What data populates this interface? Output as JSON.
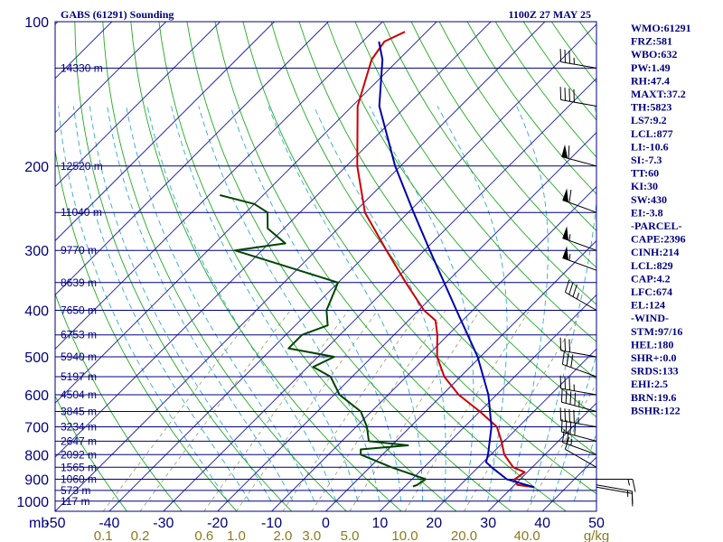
{
  "chart_data": {
    "type": "line",
    "title": "GABS (61291) Sounding",
    "timestamp": "1100Z 27 MAY 25",
    "pressure_axis": {
      "unit_label": "mb",
      "range": [
        1050,
        100
      ],
      "ticks": [
        "100",
        "200",
        "300",
        "400",
        "500",
        "600",
        "700",
        "800",
        "900",
        "1000"
      ]
    },
    "temperature_axis": {
      "range": [
        -50,
        50
      ],
      "ticks": [
        "-50",
        "-40",
        "-30",
        "-20",
        "-10",
        "0",
        "10",
        "20",
        "30",
        "40",
        "50"
      ]
    },
    "mixing_ratio_axis": {
      "unit_label": "g/kg",
      "ticks": [
        "0.1",
        "0.2",
        "0.6",
        "1.0",
        "2.0",
        "3.0",
        "5.0",
        "10.0",
        "20.0",
        "40.0"
      ]
    },
    "height_levels": [
      {
        "p": 125,
        "label": "14330 m"
      },
      {
        "p": 200,
        "label": "12520 m"
      },
      {
        "p": 250,
        "label": "11040 m"
      },
      {
        "p": 300,
        "label": "9770 m"
      },
      {
        "p": 350,
        "label": "8639 m"
      },
      {
        "p": 400,
        "label": "7650 m"
      },
      {
        "p": 450,
        "label": "6753 m"
      },
      {
        "p": 500,
        "label": "5940 m"
      },
      {
        "p": 550,
        "label": "5197 m"
      },
      {
        "p": 600,
        "label": "4504 m"
      },
      {
        "p": 650,
        "label": "3845 m"
      },
      {
        "p": 700,
        "label": "3234 m"
      },
      {
        "p": 750,
        "label": "2647 m"
      },
      {
        "p": 800,
        "label": "2092 m"
      },
      {
        "p": 850,
        "label": "1565 m"
      },
      {
        "p": 900,
        "label": "1060 m"
      },
      {
        "p": 950,
        "label": "573 m"
      },
      {
        "p": 1000,
        "label": "117 m"
      }
    ],
    "series": [
      {
        "name": "Temperature",
        "color": "#cc0000",
        "points": [
          {
            "p": 935,
            "t": 34.0
          },
          {
            "p": 925,
            "t": 30.5
          },
          {
            "p": 900,
            "t": 29.0
          },
          {
            "p": 870,
            "t": 29.5
          },
          {
            "p": 850,
            "t": 26.5
          },
          {
            "p": 800,
            "t": 22.5
          },
          {
            "p": 750,
            "t": 19.5
          },
          {
            "p": 700,
            "t": 16.0
          },
          {
            "p": 650,
            "t": 10.0
          },
          {
            "p": 600,
            "t": 3.0
          },
          {
            "p": 550,
            "t": -3.0
          },
          {
            "p": 500,
            "t": -8.0
          },
          {
            "p": 450,
            "t": -12.0
          },
          {
            "p": 420,
            "t": -15.0
          },
          {
            "p": 400,
            "t": -19.0
          },
          {
            "p": 350,
            "t": -27.5
          },
          {
            "p": 300,
            "t": -37.0
          },
          {
            "p": 250,
            "t": -48.0
          },
          {
            "p": 200,
            "t": -58.0
          },
          {
            "p": 150,
            "t": -69.0
          },
          {
            "p": 120,
            "t": -75.0
          },
          {
            "p": 110,
            "t": -76.0
          },
          {
            "p": 105,
            "t": -74.0
          }
        ]
      },
      {
        "name": "Dew point",
        "color": "#004400",
        "points": [
          {
            "p": 932,
            "t": 11.5
          },
          {
            "p": 925,
            "t": 12.0
          },
          {
            "p": 900,
            "t": 12.5
          },
          {
            "p": 870,
            "t": 7.5
          },
          {
            "p": 850,
            "t": 4.0
          },
          {
            "p": 800,
            "t": -4.0
          },
          {
            "p": 780,
            "t": -5.0
          },
          {
            "p": 765,
            "t": 3.0
          },
          {
            "p": 750,
            "t": -5.0
          },
          {
            "p": 700,
            "t": -8.0
          },
          {
            "p": 650,
            "t": -12.0
          },
          {
            "p": 600,
            "t": -19.0
          },
          {
            "p": 550,
            "t": -24.0
          },
          {
            "p": 525,
            "t": -29.0
          },
          {
            "p": 500,
            "t": -27.0
          },
          {
            "p": 480,
            "t": -37.0
          },
          {
            "p": 450,
            "t": -37.0
          },
          {
            "p": 430,
            "t": -34.0
          },
          {
            "p": 400,
            "t": -37.0
          },
          {
            "p": 350,
            "t": -40.0
          },
          {
            "p": 300,
            "t": -65.0
          },
          {
            "p": 290,
            "t": -57.0
          },
          {
            "p": 270,
            "t": -63.0
          },
          {
            "p": 250,
            "t": -66.0
          },
          {
            "p": 240,
            "t": -70.0
          },
          {
            "p": 230,
            "t": -78.0
          }
        ]
      },
      {
        "name": "Parcel path",
        "color": "#0000aa",
        "points": [
          {
            "p": 935,
            "t": 34.0
          },
          {
            "p": 900,
            "t": 27.5
          },
          {
            "p": 850,
            "t": 22.5
          },
          {
            "p": 829,
            "t": 20.5
          },
          {
            "p": 800,
            "t": 19.5
          },
          {
            "p": 700,
            "t": 15.0
          },
          {
            "p": 600,
            "t": 8.5
          },
          {
            "p": 500,
            "t": -0.5
          },
          {
            "p": 400,
            "t": -13.0
          },
          {
            "p": 300,
            "t": -29.0
          },
          {
            "p": 250,
            "t": -39.0
          },
          {
            "p": 200,
            "t": -51.0
          },
          {
            "p": 150,
            "t": -65.0
          },
          {
            "p": 120,
            "t": -73.0
          },
          {
            "p": 110,
            "t": -77.0
          }
        ]
      }
    ],
    "winds": [
      {
        "p": 935,
        "dir": 100,
        "spd": 10
      },
      {
        "p": 925,
        "dir": 100,
        "spd": 15
      },
      {
        "p": 900,
        "dir": 90,
        "spd": 15
      },
      {
        "p": 850,
        "dir": 300,
        "spd": 10
      },
      {
        "p": 800,
        "dir": 290,
        "spd": 25
      },
      {
        "p": 750,
        "dir": 285,
        "spd": 40
      },
      {
        "p": 700,
        "dir": 280,
        "spd": 45
      },
      {
        "p": 650,
        "dir": 285,
        "spd": 45
      },
      {
        "p": 600,
        "dir": 280,
        "spd": 35
      },
      {
        "p": 550,
        "dir": 290,
        "spd": 30
      },
      {
        "p": 500,
        "dir": 280,
        "spd": 30
      },
      {
        "p": 400,
        "dir": 300,
        "spd": 35
      },
      {
        "p": 330,
        "dir": 290,
        "spd": 55
      },
      {
        "p": 300,
        "dir": 290,
        "spd": 55
      },
      {
        "p": 250,
        "dir": 290,
        "spd": 60
      },
      {
        "p": 200,
        "dir": 285,
        "spd": 60
      },
      {
        "p": 150,
        "dir": 280,
        "spd": 40
      },
      {
        "p": 125,
        "dir": 280,
        "spd": 35
      }
    ]
  },
  "indices": [
    "WMO:61291",
    "FRZ:581",
    "WBO:632",
    "PW:1.49",
    "RH:47.4",
    "MAXT:37.2",
    "TH:5823",
    "LS7:9.2",
    "LCL:877",
    "LI:-10.6",
    "SI:-7.3",
    "TT:60",
    "KI:30",
    "SW:430",
    "EI:-3.8",
    "-PARCEL-",
    "CAPE:2396",
    "CINH:214",
    "LCL:829",
    "CAP:4.2",
    "LFC:674",
    "EL:124",
    "-WIND-",
    "STM:97/16",
    "HEL:180",
    "SHR+:0.0",
    "SRDS:133",
    "EHI:2.5",
    "BRN:19.6",
    "BSHR:122"
  ],
  "colors": {
    "isobar": "#00007a",
    "isotherm": "#2a2ab4",
    "dry_adiabat": "#22aa22",
    "moist_adiabat": "#33aacc",
    "mixing_ratio": "#999966",
    "wind_barb": "#000000"
  }
}
